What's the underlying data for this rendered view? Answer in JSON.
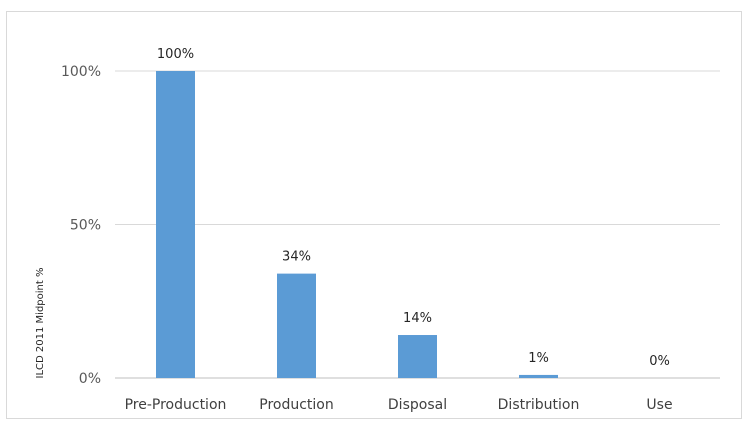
{
  "chart_data": {
    "type": "bar",
    "categories": [
      "Pre-Production",
      "Production",
      "Disposal",
      "Distribution",
      "Use"
    ],
    "values": [
      100,
      34,
      14,
      1,
      0
    ],
    "data_labels": [
      "100%",
      "34%",
      "14%",
      "1%",
      "0%"
    ],
    "ylabel": "ILCD 2011 Midpoint %",
    "ylim": [
      0,
      100
    ],
    "yticks": [
      0,
      50,
      100
    ],
    "ytick_labels": [
      "0%",
      "50%",
      "100%"
    ],
    "grid": true,
    "bar_color": "#5b9bd5",
    "grid_color": "#d9d9d9"
  }
}
